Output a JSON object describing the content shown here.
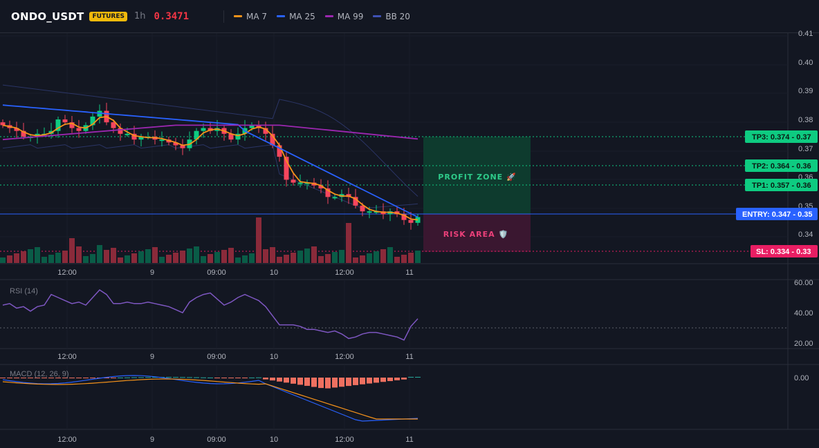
{
  "header": {
    "symbol": "ONDO_USDT",
    "badge": "FUTURES",
    "timeframe": "1h",
    "price": "0.3471",
    "legend": [
      {
        "label": "MA 7",
        "color": "#f7931a"
      },
      {
        "label": "MA 25",
        "color": "#2962ff"
      },
      {
        "label": "MA 99",
        "color": "#9c27b0"
      },
      {
        "label": "BB 20",
        "color": "#3f51b5"
      }
    ]
  },
  "colors": {
    "up": "#0ecb81",
    "down": "#f6465d",
    "bg": "#131722",
    "grid": "#1e222d"
  },
  "price_axis": {
    "ticks": [
      "0.41",
      "0.40",
      "0.39",
      "0.38",
      "0.37",
      "0.36",
      "0.35",
      "0.34"
    ]
  },
  "time_axis": {
    "ticks": [
      "12:00",
      "9",
      "09:00",
      "10",
      "12:00",
      "11"
    ]
  },
  "levels": {
    "tp3": "TP3: 0.374 - 0.37",
    "tp2": "TP2: 0.364 - 0.36",
    "tp1": "TP1: 0.357 - 0.36",
    "entry": "ENTRY: 0.347 - 0.35",
    "sl": "SL: 0.334 - 0.33"
  },
  "zones": {
    "profit": "PROFIT ZONE 🚀",
    "risk": "RISK AREA 🛡️"
  },
  "rsi": {
    "label": "RSI (14)",
    "ticks": [
      "60.00",
      "40.00",
      "20.00"
    ]
  },
  "macd": {
    "label": "MACD (12, 26, 9)",
    "ticks": [
      "0.00"
    ]
  }
}
